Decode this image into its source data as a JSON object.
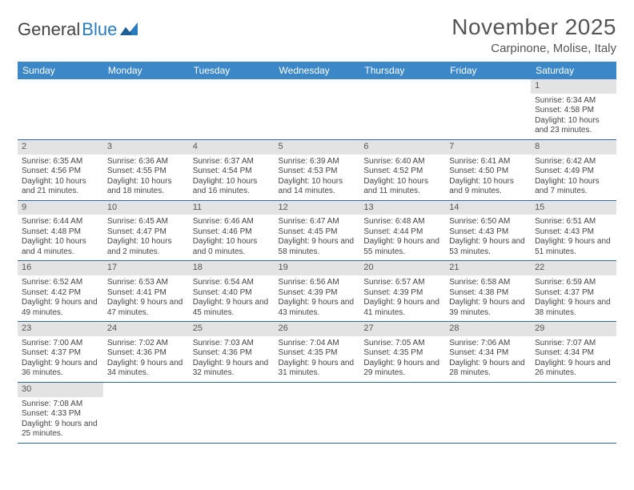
{
  "logo": {
    "word_a": "General",
    "word_b": "Blue",
    "color_a": "#444444",
    "color_b": "#2b7bbf"
  },
  "title": "November 2025",
  "location": "Carpinone, Molise, Italy",
  "header_bg": "#3b87c8",
  "header_fg": "#ffffff",
  "daynum_bg": "#e3e3e3",
  "row_border": "#2f6aa3",
  "days_of_week": [
    "Sunday",
    "Monday",
    "Tuesday",
    "Wednesday",
    "Thursday",
    "Friday",
    "Saturday"
  ],
  "weeks": [
    [
      null,
      null,
      null,
      null,
      null,
      null,
      {
        "n": "1",
        "sr": "Sunrise: 6:34 AM",
        "ss": "Sunset: 4:58 PM",
        "dl": "Daylight: 10 hours and 23 minutes."
      }
    ],
    [
      {
        "n": "2",
        "sr": "Sunrise: 6:35 AM",
        "ss": "Sunset: 4:56 PM",
        "dl": "Daylight: 10 hours and 21 minutes."
      },
      {
        "n": "3",
        "sr": "Sunrise: 6:36 AM",
        "ss": "Sunset: 4:55 PM",
        "dl": "Daylight: 10 hours and 18 minutes."
      },
      {
        "n": "4",
        "sr": "Sunrise: 6:37 AM",
        "ss": "Sunset: 4:54 PM",
        "dl": "Daylight: 10 hours and 16 minutes."
      },
      {
        "n": "5",
        "sr": "Sunrise: 6:39 AM",
        "ss": "Sunset: 4:53 PM",
        "dl": "Daylight: 10 hours and 14 minutes."
      },
      {
        "n": "6",
        "sr": "Sunrise: 6:40 AM",
        "ss": "Sunset: 4:52 PM",
        "dl": "Daylight: 10 hours and 11 minutes."
      },
      {
        "n": "7",
        "sr": "Sunrise: 6:41 AM",
        "ss": "Sunset: 4:50 PM",
        "dl": "Daylight: 10 hours and 9 minutes."
      },
      {
        "n": "8",
        "sr": "Sunrise: 6:42 AM",
        "ss": "Sunset: 4:49 PM",
        "dl": "Daylight: 10 hours and 7 minutes."
      }
    ],
    [
      {
        "n": "9",
        "sr": "Sunrise: 6:44 AM",
        "ss": "Sunset: 4:48 PM",
        "dl": "Daylight: 10 hours and 4 minutes."
      },
      {
        "n": "10",
        "sr": "Sunrise: 6:45 AM",
        "ss": "Sunset: 4:47 PM",
        "dl": "Daylight: 10 hours and 2 minutes."
      },
      {
        "n": "11",
        "sr": "Sunrise: 6:46 AM",
        "ss": "Sunset: 4:46 PM",
        "dl": "Daylight: 10 hours and 0 minutes."
      },
      {
        "n": "12",
        "sr": "Sunrise: 6:47 AM",
        "ss": "Sunset: 4:45 PM",
        "dl": "Daylight: 9 hours and 58 minutes."
      },
      {
        "n": "13",
        "sr": "Sunrise: 6:48 AM",
        "ss": "Sunset: 4:44 PM",
        "dl": "Daylight: 9 hours and 55 minutes."
      },
      {
        "n": "14",
        "sr": "Sunrise: 6:50 AM",
        "ss": "Sunset: 4:43 PM",
        "dl": "Daylight: 9 hours and 53 minutes."
      },
      {
        "n": "15",
        "sr": "Sunrise: 6:51 AM",
        "ss": "Sunset: 4:43 PM",
        "dl": "Daylight: 9 hours and 51 minutes."
      }
    ],
    [
      {
        "n": "16",
        "sr": "Sunrise: 6:52 AM",
        "ss": "Sunset: 4:42 PM",
        "dl": "Daylight: 9 hours and 49 minutes."
      },
      {
        "n": "17",
        "sr": "Sunrise: 6:53 AM",
        "ss": "Sunset: 4:41 PM",
        "dl": "Daylight: 9 hours and 47 minutes."
      },
      {
        "n": "18",
        "sr": "Sunrise: 6:54 AM",
        "ss": "Sunset: 4:40 PM",
        "dl": "Daylight: 9 hours and 45 minutes."
      },
      {
        "n": "19",
        "sr": "Sunrise: 6:56 AM",
        "ss": "Sunset: 4:39 PM",
        "dl": "Daylight: 9 hours and 43 minutes."
      },
      {
        "n": "20",
        "sr": "Sunrise: 6:57 AM",
        "ss": "Sunset: 4:39 PM",
        "dl": "Daylight: 9 hours and 41 minutes."
      },
      {
        "n": "21",
        "sr": "Sunrise: 6:58 AM",
        "ss": "Sunset: 4:38 PM",
        "dl": "Daylight: 9 hours and 39 minutes."
      },
      {
        "n": "22",
        "sr": "Sunrise: 6:59 AM",
        "ss": "Sunset: 4:37 PM",
        "dl": "Daylight: 9 hours and 38 minutes."
      }
    ],
    [
      {
        "n": "23",
        "sr": "Sunrise: 7:00 AM",
        "ss": "Sunset: 4:37 PM",
        "dl": "Daylight: 9 hours and 36 minutes."
      },
      {
        "n": "24",
        "sr": "Sunrise: 7:02 AM",
        "ss": "Sunset: 4:36 PM",
        "dl": "Daylight: 9 hours and 34 minutes."
      },
      {
        "n": "25",
        "sr": "Sunrise: 7:03 AM",
        "ss": "Sunset: 4:36 PM",
        "dl": "Daylight: 9 hours and 32 minutes."
      },
      {
        "n": "26",
        "sr": "Sunrise: 7:04 AM",
        "ss": "Sunset: 4:35 PM",
        "dl": "Daylight: 9 hours and 31 minutes."
      },
      {
        "n": "27",
        "sr": "Sunrise: 7:05 AM",
        "ss": "Sunset: 4:35 PM",
        "dl": "Daylight: 9 hours and 29 minutes."
      },
      {
        "n": "28",
        "sr": "Sunrise: 7:06 AM",
        "ss": "Sunset: 4:34 PM",
        "dl": "Daylight: 9 hours and 28 minutes."
      },
      {
        "n": "29",
        "sr": "Sunrise: 7:07 AM",
        "ss": "Sunset: 4:34 PM",
        "dl": "Daylight: 9 hours and 26 minutes."
      }
    ],
    [
      {
        "n": "30",
        "sr": "Sunrise: 7:08 AM",
        "ss": "Sunset: 4:33 PM",
        "dl": "Daylight: 9 hours and 25 minutes."
      },
      null,
      null,
      null,
      null,
      null,
      null
    ]
  ]
}
